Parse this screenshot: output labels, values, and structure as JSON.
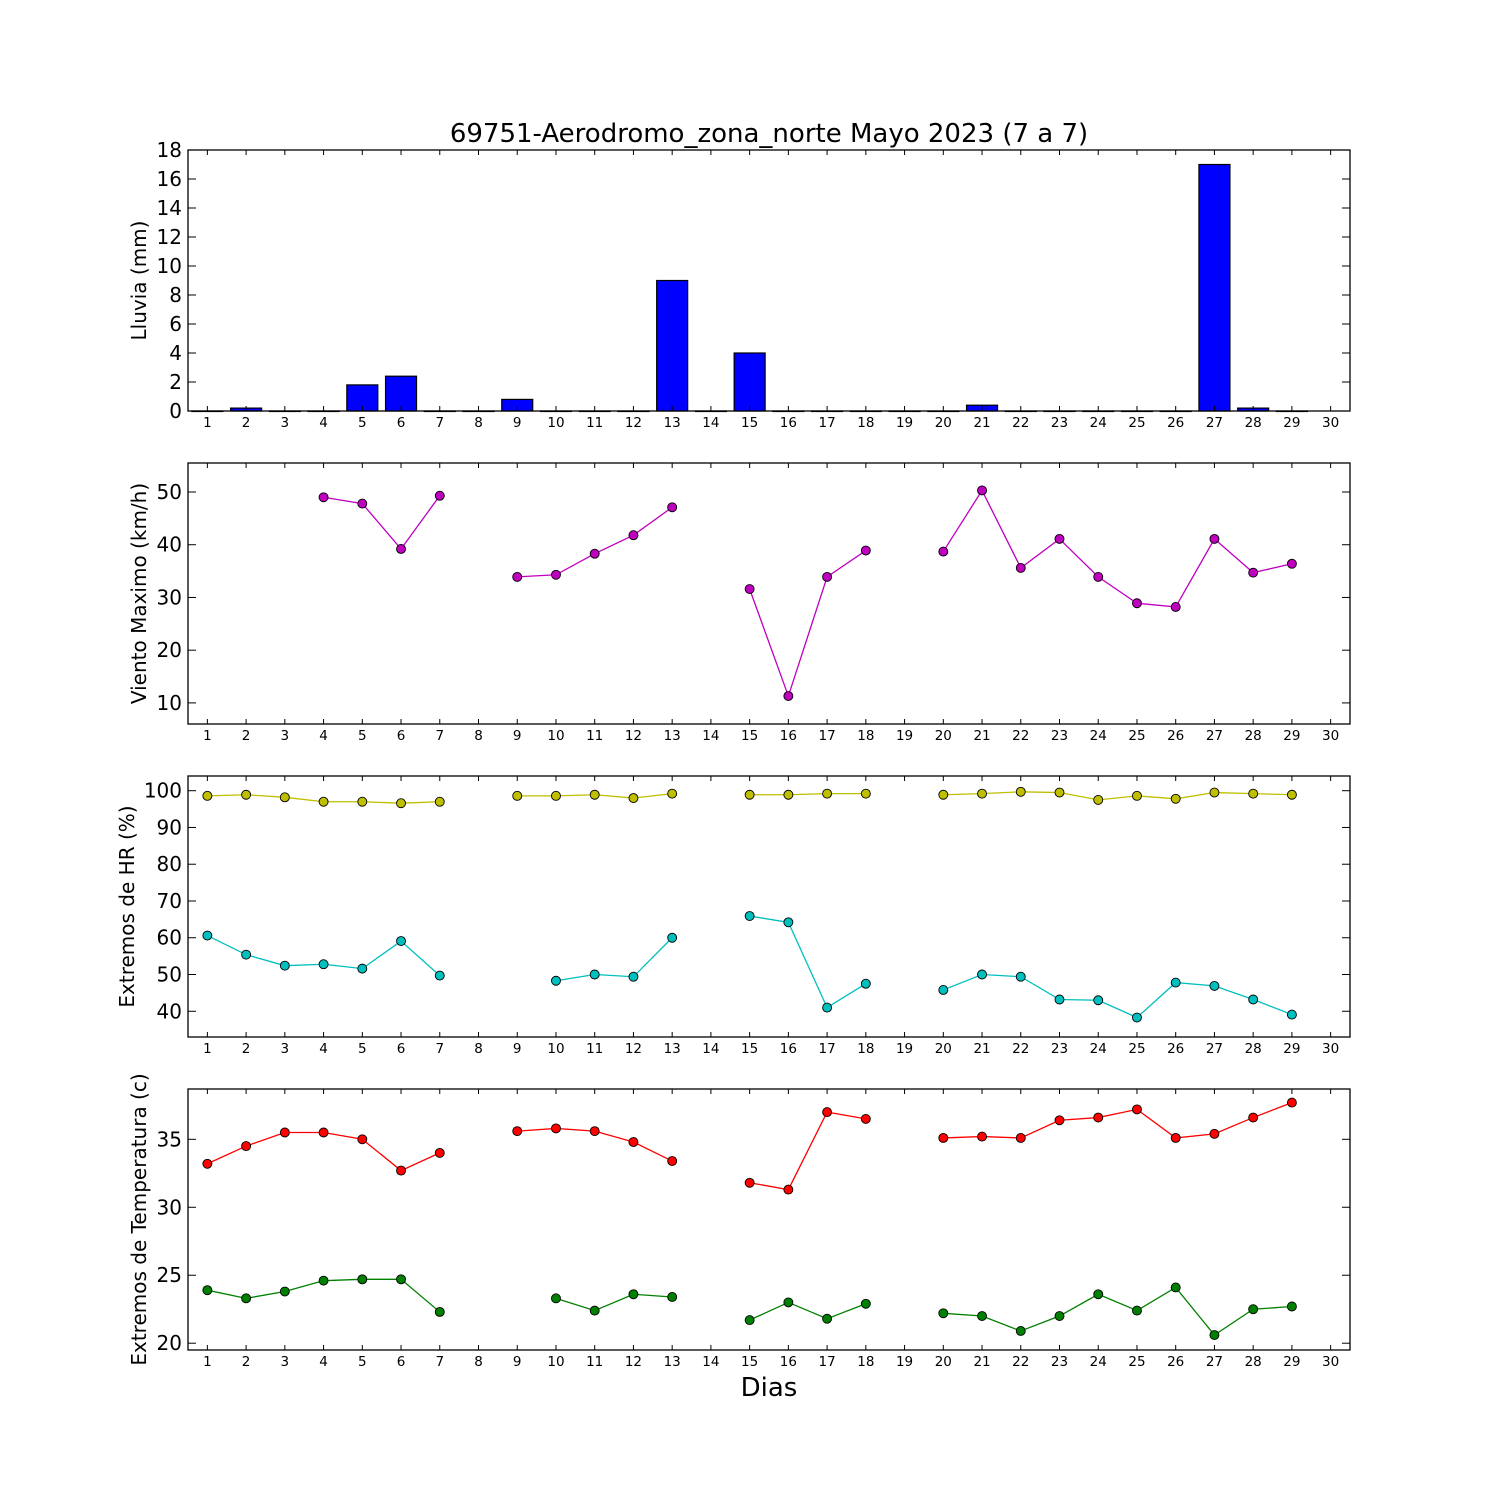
{
  "title": "69751-Aerodromo_zona_norte Mayo 2023  (7 a 7)",
  "xlabel": "Dias",
  "colors": {
    "rain": "#0000ff",
    "wind": "#bf00bf",
    "hr_max": "#bfbf00",
    "hr_min": "#00bfbf",
    "t_max": "#ff0000",
    "t_min": "#008000"
  },
  "chart_data": [
    {
      "type": "bar",
      "ylabel": "Lluvia (mm)",
      "xlim": [
        0.5,
        30.5
      ],
      "ylim": [
        0,
        18
      ],
      "yticks": [
        0,
        2,
        4,
        6,
        8,
        10,
        12,
        14,
        16,
        18
      ],
      "xticks": [
        1,
        2,
        3,
        4,
        5,
        6,
        7,
        8,
        9,
        10,
        11,
        12,
        13,
        14,
        15,
        16,
        17,
        18,
        19,
        20,
        21,
        22,
        23,
        24,
        25,
        26,
        27,
        28,
        29,
        30
      ],
      "x": [
        1,
        2,
        3,
        4,
        5,
        6,
        7,
        8,
        9,
        10,
        11,
        12,
        13,
        14,
        15,
        16,
        17,
        18,
        19,
        20,
        21,
        22,
        23,
        24,
        25,
        26,
        27,
        28,
        29,
        30
      ],
      "values": [
        0,
        0.2,
        0,
        0,
        1.8,
        2.4,
        0,
        0,
        0.8,
        0,
        0,
        0,
        9.0,
        0,
        4.0,
        0,
        0,
        0,
        0,
        0,
        0.4,
        0,
        0,
        0,
        0,
        0,
        17.0,
        0.2,
        0,
        null
      ],
      "color": "#0000ff"
    },
    {
      "type": "line",
      "ylabel": "Viento Maximo (km/h)",
      "xlim": [
        0.5,
        30.5
      ],
      "ylim": [
        6,
        55.5
      ],
      "yticks": [
        10,
        20,
        30,
        40,
        50
      ],
      "xticks": [
        1,
        2,
        3,
        4,
        5,
        6,
        7,
        8,
        9,
        10,
        11,
        12,
        13,
        14,
        15,
        16,
        17,
        18,
        19,
        20,
        21,
        22,
        23,
        24,
        25,
        26,
        27,
        28,
        29,
        30
      ],
      "series": [
        {
          "color": "#bf00bf",
          "x": [
            1,
            2,
            3,
            4,
            5,
            6,
            7,
            8,
            9,
            10,
            11,
            12,
            13,
            14,
            15,
            16,
            17,
            18,
            19,
            20,
            21,
            22,
            23,
            24,
            25,
            26,
            27,
            28,
            29
          ],
          "y": [
            null,
            null,
            null,
            49.0,
            47.8,
            39.2,
            49.3,
            null,
            33.9,
            34.3,
            38.3,
            41.8,
            47.1,
            null,
            31.6,
            11.3,
            33.9,
            38.9,
            null,
            38.7,
            50.3,
            35.6,
            41.1,
            33.9,
            28.9,
            28.2,
            41.1,
            34.7,
            36.4
          ]
        }
      ]
    },
    {
      "type": "line",
      "ylabel": "Extremos de HR (%)",
      "xlim": [
        0.5,
        30.5
      ],
      "ylim": [
        33,
        104
      ],
      "yticks": [
        40,
        50,
        60,
        70,
        80,
        90,
        100
      ],
      "xticks": [
        1,
        2,
        3,
        4,
        5,
        6,
        7,
        8,
        9,
        10,
        11,
        12,
        13,
        14,
        15,
        16,
        17,
        18,
        19,
        20,
        21,
        22,
        23,
        24,
        25,
        26,
        27,
        28,
        29,
        30
      ],
      "series": [
        {
          "color": "#bfbf00",
          "x": [
            1,
            2,
            3,
            4,
            5,
            6,
            7,
            8,
            9,
            10,
            11,
            12,
            13,
            14,
            15,
            16,
            17,
            18,
            19,
            20,
            21,
            22,
            23,
            24,
            25,
            26,
            27,
            28,
            29
          ],
          "y": [
            98.6,
            98.9,
            98.2,
            97.0,
            97.0,
            96.6,
            97.0,
            null,
            98.6,
            98.6,
            98.9,
            98.0,
            99.2,
            null,
            98.9,
            98.9,
            99.2,
            99.2,
            null,
            98.9,
            99.2,
            99.7,
            99.5,
            97.5,
            98.6,
            97.8,
            99.5,
            99.2,
            98.9
          ]
        },
        {
          "color": "#00bfbf",
          "x": [
            1,
            2,
            3,
            4,
            5,
            6,
            7,
            8,
            9,
            10,
            11,
            12,
            13,
            14,
            15,
            16,
            17,
            18,
            19,
            20,
            21,
            22,
            23,
            24,
            25,
            26,
            27,
            28,
            29
          ],
          "y": [
            60.6,
            55.4,
            52.4,
            52.8,
            51.6,
            59.1,
            49.7,
            null,
            null,
            48.3,
            50.0,
            49.4,
            60.0,
            null,
            65.9,
            64.2,
            41.0,
            47.5,
            null,
            45.8,
            50.0,
            49.4,
            43.2,
            43.0,
            38.3,
            47.8,
            46.9,
            43.2,
            39.1
          ]
        }
      ]
    },
    {
      "type": "line",
      "ylabel": "Extremos de Temperatura (c)",
      "xlim": [
        0.5,
        30.5
      ],
      "ylim": [
        19.5,
        38.7
      ],
      "yticks": [
        20,
        25,
        30,
        35
      ],
      "xticks": [
        1,
        2,
        3,
        4,
        5,
        6,
        7,
        8,
        9,
        10,
        11,
        12,
        13,
        14,
        15,
        16,
        17,
        18,
        19,
        20,
        21,
        22,
        23,
        24,
        25,
        26,
        27,
        28,
        29,
        30
      ],
      "series": [
        {
          "color": "#ff0000",
          "x": [
            1,
            2,
            3,
            4,
            5,
            6,
            7,
            8,
            9,
            10,
            11,
            12,
            13,
            14,
            15,
            16,
            17,
            18,
            19,
            20,
            21,
            22,
            23,
            24,
            25,
            26,
            27,
            28,
            29
          ],
          "y": [
            33.2,
            34.5,
            35.5,
            35.5,
            35.0,
            32.7,
            34.0,
            null,
            35.6,
            35.8,
            35.6,
            34.8,
            33.4,
            null,
            31.8,
            31.3,
            37.0,
            36.5,
            null,
            35.1,
            35.2,
            35.1,
            36.4,
            36.6,
            37.2,
            35.1,
            35.4,
            36.6,
            37.7
          ]
        },
        {
          "color": "#008000",
          "x": [
            1,
            2,
            3,
            4,
            5,
            6,
            7,
            8,
            9,
            10,
            11,
            12,
            13,
            14,
            15,
            16,
            17,
            18,
            19,
            20,
            21,
            22,
            23,
            24,
            25,
            26,
            27,
            28,
            29
          ],
          "y": [
            23.9,
            23.3,
            23.8,
            24.6,
            24.7,
            24.7,
            22.3,
            null,
            null,
            23.3,
            22.4,
            23.6,
            23.4,
            null,
            21.7,
            23.0,
            21.8,
            22.9,
            null,
            22.2,
            22.0,
            20.9,
            22.0,
            23.6,
            22.4,
            24.1,
            20.6,
            22.5,
            22.7
          ]
        }
      ]
    }
  ]
}
